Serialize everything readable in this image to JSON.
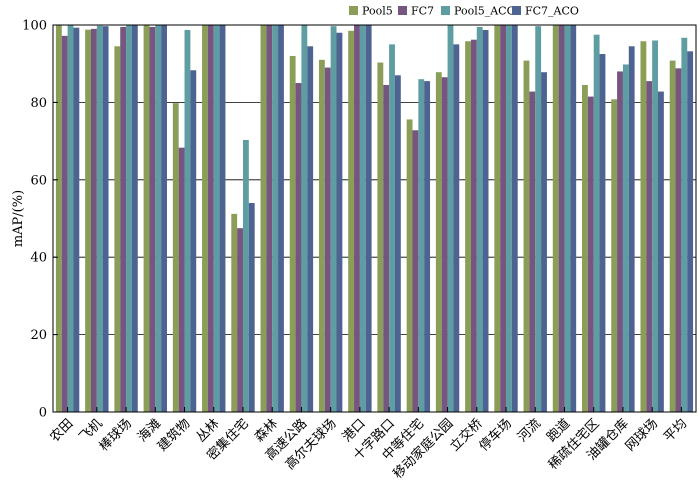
{
  "chart_data": {
    "type": "bar",
    "ylabel": "mAP/(%)",
    "ylim": [
      0,
      100
    ],
    "yticks": [
      0,
      20,
      40,
      60,
      80,
      100
    ],
    "grid": "horizontal",
    "legend_position": "top-right",
    "categories": [
      "农田",
      "飞机",
      "棒球场",
      "海滩",
      "建筑物",
      "丛林",
      "密集住宅",
      "森林",
      "高速公路",
      "高尔夫球场",
      "港口",
      "十字路口",
      "中等住宅",
      "移动家庭公园",
      "立交桥",
      "停车场",
      "河流",
      "跑道",
      "稀疏住宅区",
      "油罐仓库",
      "网球场",
      "平均"
    ],
    "series": [
      {
        "name": "Pool5",
        "color": "#8b9e58",
        "values": [
          100,
          98.8,
          94.5,
          100,
          79.8,
          100,
          51.2,
          100,
          92,
          91,
          98.5,
          90.3,
          75.6,
          87.8,
          95.8,
          100,
          90.8,
          100,
          84.5,
          80.8,
          95.8,
          90.8
        ]
      },
      {
        "name": "FC7",
        "color": "#765580",
        "values": [
          97.2,
          99,
          99.5,
          99.5,
          68.3,
          100,
          47.5,
          100,
          85,
          89,
          100,
          84.5,
          72.8,
          86.5,
          96.2,
          100,
          82.8,
          100,
          81.5,
          88,
          85.5,
          88.8
        ]
      },
      {
        "name": "Pool5_ACO",
        "color": "#5e9ea3",
        "values": [
          100,
          99.8,
          100,
          100,
          98.7,
          100,
          70.3,
          100,
          100,
          99.7,
          100,
          95,
          86,
          100,
          99.5,
          100,
          99.7,
          100,
          97.5,
          89.8,
          96,
          96.7
        ]
      },
      {
        "name": "FC7_ACO",
        "color": "#4d6391",
        "values": [
          99.3,
          99.7,
          100,
          100,
          88.3,
          100,
          54,
          100,
          94.5,
          98,
          100,
          87,
          85.5,
          95,
          98.7,
          100,
          87.8,
          100,
          92.5,
          94.5,
          82.8,
          93.2
        ]
      }
    ]
  }
}
